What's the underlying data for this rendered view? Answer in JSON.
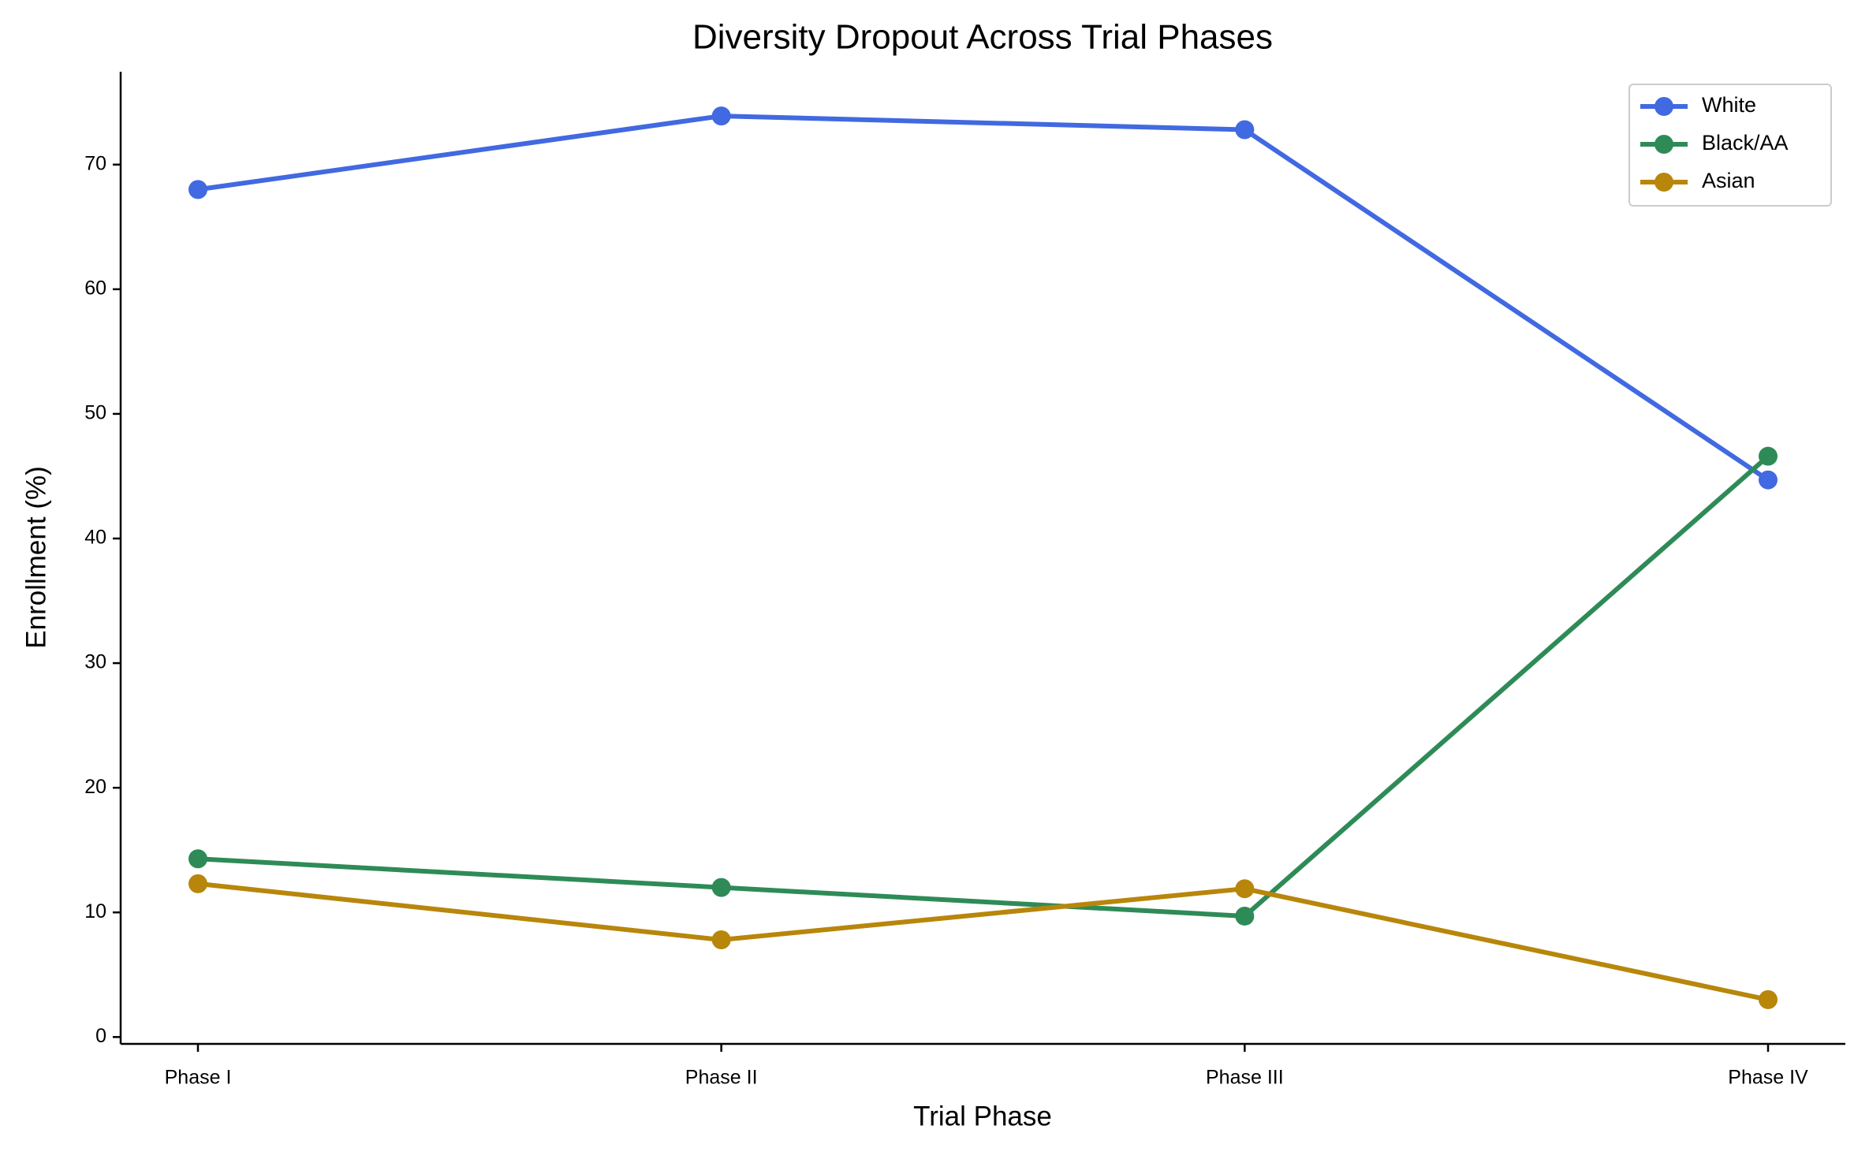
{
  "chart_data": {
    "type": "line",
    "title": "Diversity Dropout Across Trial Phases",
    "x_label": "Trial Phase",
    "y_label": "Enrollment (%)",
    "categories": [
      "Phase I",
      "Phase II",
      "Phase III",
      "Phase IV"
    ],
    "series": [
      {
        "name": "White",
        "color": "#4169e1",
        "values": [
          68.0,
          73.9,
          72.8,
          44.7
        ]
      },
      {
        "name": "Black/AA",
        "color": "#2e8b57",
        "values": [
          14.3,
          12.0,
          9.7,
          46.6
        ]
      },
      {
        "name": "Asian",
        "color": "#b8860b",
        "values": [
          12.3,
          7.8,
          11.9,
          3.0
        ]
      }
    ],
    "ylim": [
      -0.55,
      77.45
    ],
    "yticks": [
      0,
      10,
      20,
      30,
      40,
      50,
      60,
      70
    ],
    "grid": false,
    "legend": "upper right"
  }
}
